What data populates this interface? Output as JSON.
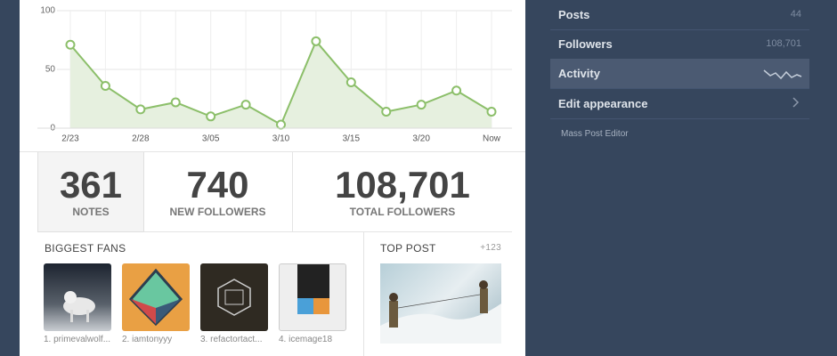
{
  "chart_data": {
    "type": "line",
    "categories": [
      "2/23",
      null,
      "2/28",
      null,
      "3/05",
      null,
      "3/10",
      null,
      "3/15",
      null,
      "3/20",
      null,
      "Now"
    ],
    "values": [
      71,
      36,
      16,
      22,
      10,
      20,
      3,
      74,
      39,
      14,
      20,
      32,
      14
    ],
    "color": "#8cbf6a",
    "ylim": [
      0,
      100
    ],
    "yticks": [
      0,
      50,
      100
    ],
    "grid": true
  },
  "stats": [
    {
      "value": "361",
      "label": "NOTES"
    },
    {
      "value": "740",
      "label": "NEW FOLLOWERS"
    },
    {
      "value": "108,701",
      "label": "TOTAL FOLLOWERS"
    }
  ],
  "biggest_fans": {
    "title": "BIGGEST FANS",
    "fans": [
      "1. primevalwolf...",
      "2. iamtonyyy",
      "3. refactortact...",
      "4. icemage18"
    ]
  },
  "top_post": {
    "title": "TOP POST",
    "count": "+123"
  },
  "sidebar": {
    "rows": [
      {
        "label": "Posts",
        "value": "44"
      },
      {
        "label": "Followers",
        "value": "108,701"
      },
      {
        "label": "Activity"
      },
      {
        "label": "Edit appearance"
      }
    ],
    "footer": "Mass Post Editor"
  }
}
